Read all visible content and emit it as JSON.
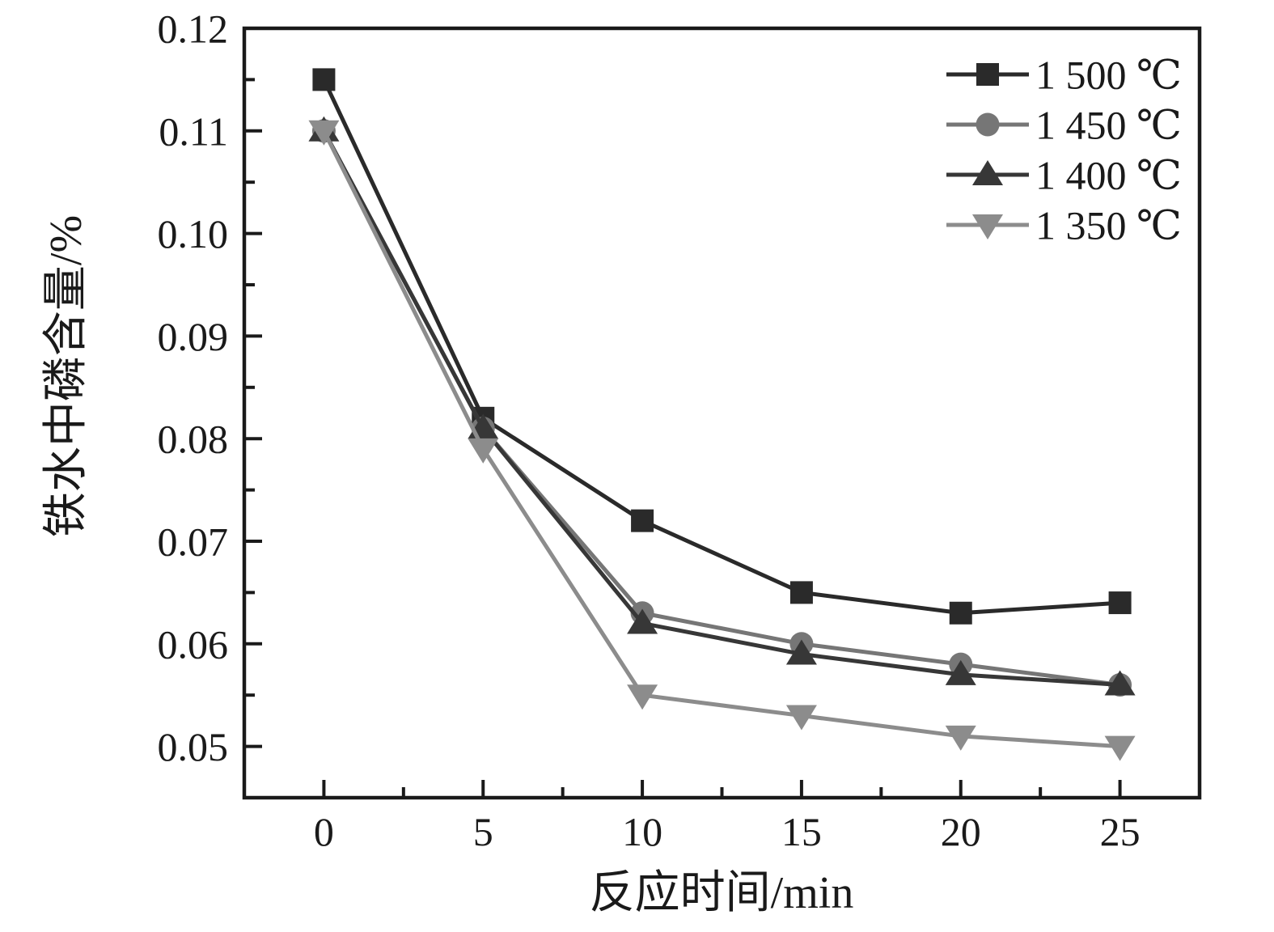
{
  "chart_data": {
    "type": "line",
    "x": [
      0,
      5,
      10,
      15,
      20,
      25
    ],
    "series": [
      {
        "name": "1 500 ℃",
        "marker": "square",
        "color": "#2a2a2a",
        "values": [
          0.115,
          0.082,
          0.072,
          0.065,
          0.063,
          0.064
        ]
      },
      {
        "name": "1 450 ℃",
        "marker": "circle",
        "color": "#767676",
        "values": [
          0.11,
          0.081,
          0.063,
          0.06,
          0.058,
          0.056
        ]
      },
      {
        "name": "1 400 ℃",
        "marker": "triangle-up",
        "color": "#373737",
        "values": [
          0.11,
          0.081,
          0.062,
          0.059,
          0.057,
          0.056
        ]
      },
      {
        "name": "1 350 ℃",
        "marker": "triangle-down",
        "color": "#8c8c8c",
        "values": [
          0.11,
          0.079,
          0.055,
          0.053,
          0.051,
          0.05
        ]
      }
    ],
    "title": "",
    "xlabel": "反应时间/min",
    "ylabel": "铁水中磷含量/%",
    "xlim": [
      -2.5,
      27.5
    ],
    "ylim": [
      0.045,
      0.12
    ],
    "x_ticks": [
      0,
      5,
      10,
      15,
      20,
      25
    ],
    "x_minor_ticks": [
      2.5,
      7.5,
      12.5,
      17.5,
      22.5
    ],
    "y_ticks": [
      0.05,
      0.06,
      0.07,
      0.08,
      0.09,
      0.1,
      0.11,
      0.12
    ],
    "y_minor_ticks": [
      0.055,
      0.065,
      0.075,
      0.085,
      0.095,
      0.105,
      0.115
    ],
    "grid": false,
    "legend_position": "top-right",
    "frame_color": "#1a1a1a",
    "text_color": "#1a1a1a",
    "background_color": "#ffffff"
  }
}
